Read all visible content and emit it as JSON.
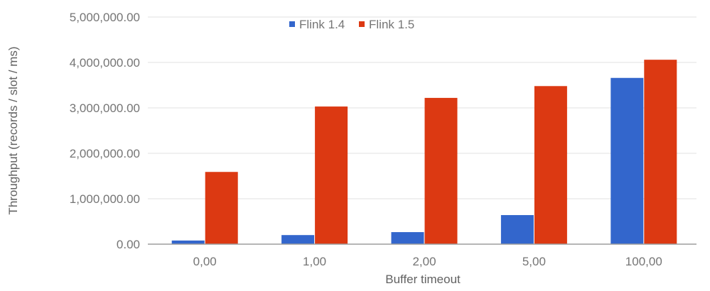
{
  "chart_data": {
    "type": "bar",
    "title": "",
    "xlabel": "Buffer timeout",
    "ylabel": "Throughput (records / slot / ms)",
    "categories": [
      "0,00",
      "1,00",
      "2,00",
      "5,00",
      "100,00"
    ],
    "series": [
      {
        "name": "Flink 1.4",
        "color": "#3366cc",
        "values": [
          80000,
          200000,
          265000,
          640000,
          3660000
        ]
      },
      {
        "name": "Flink 1.5",
        "color": "#dc3912",
        "values": [
          1590000,
          3030000,
          3220000,
          3480000,
          4060000
        ]
      }
    ],
    "ylim": [
      0,
      5000000
    ],
    "yticks": [
      0,
      1000000,
      2000000,
      3000000,
      4000000,
      5000000
    ],
    "ytick_labels": [
      "0.00",
      "1,000,000.00",
      "2,000,000.00",
      "3,000,000.00",
      "4,000,000.00",
      "5,000,000.00"
    ],
    "grid": true,
    "legend_position": "top"
  },
  "legend": {
    "items": [
      {
        "label": "Flink 1.4",
        "color": "#3366cc"
      },
      {
        "label": "Flink 1.5",
        "color": "#dc3912"
      }
    ]
  },
  "axes": {
    "x_title": "Buffer timeout",
    "y_title": "Throughput (records / slot / ms)"
  },
  "style": {
    "grid_color": "#e0e0e0",
    "baseline_color": "#9e9e9e"
  }
}
